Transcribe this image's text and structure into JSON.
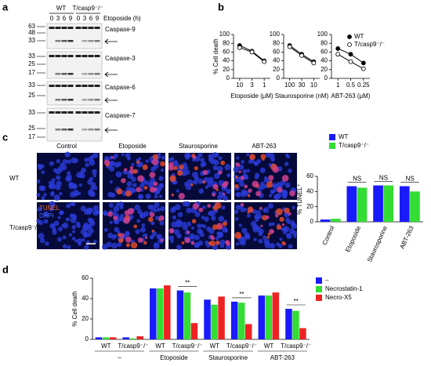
{
  "panel_labels": [
    "a",
    "b",
    "c",
    "d"
  ],
  "blots": {
    "genotypes": [
      "WT",
      "T/casp9⁻/⁻"
    ],
    "lanes": [
      "0",
      "3",
      "6",
      "9",
      "0",
      "3",
      "6",
      "9"
    ],
    "treatment": "Etoposide (h)",
    "panels": [
      {
        "name": "Caspase-9",
        "markers": [
          63,
          48,
          33
        ]
      },
      {
        "name": "Caspase-3",
        "markers": [
          33,
          25,
          17
        ]
      },
      {
        "name": "Caspase-6",
        "markers": [
          33,
          25
        ]
      },
      {
        "name": "Caspase-7",
        "markers": [
          33,
          25,
          17
        ]
      }
    ]
  },
  "images": {
    "columns": [
      "Control",
      "Etoposide",
      "Staurosporine",
      "ABT-263"
    ],
    "rows": [
      "WT",
      "T/casp9⁻/⁻"
    ],
    "stains": [
      "TUNEL",
      "DAPI"
    ]
  },
  "chart_data": [
    {
      "type": "line",
      "y_label": "% Cell death",
      "x_label": "Etoposide (μM)",
      "categories": [
        "10",
        "3",
        "1"
      ],
      "ylim": [
        0,
        100
      ],
      "yticks": [
        0,
        20,
        40,
        60,
        80,
        100
      ],
      "series": [
        {
          "color": "#000000",
          "marker_fill": "#000000",
          "values": [
            75,
            62,
            40
          ]
        },
        {
          "color": "#000000",
          "marker_fill": "#ffffff",
          "values": [
            70,
            60,
            38
          ]
        }
      ]
    },
    {
      "type": "line",
      "x_label": "Staurosporine (nM)",
      "categories": [
        "100",
        "30",
        "10"
      ],
      "ylim": [
        0,
        100
      ],
      "yticks": [
        0,
        20,
        40,
        60,
        80,
        100
      ],
      "series": [
        {
          "color": "#000000",
          "marker_fill": "#000000",
          "values": [
            75,
            55,
            38
          ]
        },
        {
          "color": "#000000",
          "marker_fill": "#ffffff",
          "values": [
            72,
            52,
            35
          ]
        }
      ]
    },
    {
      "type": "line",
      "x_label": "ABT-263 (μM)",
      "categories": [
        "1",
        "0.5",
        "0.25"
      ],
      "ylim": [
        0,
        100
      ],
      "yticks": [
        0,
        20,
        40,
        60,
        80,
        100
      ],
      "series": [
        {
          "name": "WT",
          "color": "#000000",
          "marker_fill": "#000000",
          "values": [
            68,
            55,
            35
          ]
        },
        {
          "name": "T/casp9⁻/⁻",
          "color": "#000000",
          "marker_fill": "#ffffff",
          "values": [
            55,
            38,
            22
          ]
        }
      ]
    },
    {
      "type": "bar",
      "y_label": "% TUNEL⁺",
      "categories": [
        "Control",
        "Etoposide",
        "Staurosporine",
        "ABT-263"
      ],
      "ylim": [
        0,
        60
      ],
      "yticks": [
        0,
        20,
        40,
        60
      ],
      "series": [
        {
          "name": "WT",
          "color": "#1a1aff",
          "values": [
            3,
            47,
            48,
            47
          ]
        },
        {
          "name": "T/casp9⁻/⁻",
          "color": "#33dd33",
          "values": [
            4,
            45,
            48,
            40
          ]
        }
      ],
      "annotations": [
        "NS",
        "NS",
        "NS"
      ]
    },
    {
      "type": "bar",
      "y_label": "% Cell death",
      "categories": [
        "WT",
        "T/casp9⁻/⁻",
        "WT",
        "T/casp9⁻/⁻",
        "WT",
        "T/casp9⁻/⁻",
        "WT",
        "T/casp9⁻/⁻"
      ],
      "group_labels": [
        "–",
        "Etoposide",
        "Staurosporine",
        "ABT-263"
      ],
      "ylim": [
        0,
        60
      ],
      "yticks": [
        0,
        20,
        40,
        60
      ],
      "series": [
        {
          "name": "–",
          "color": "#1a1aff",
          "values": [
            2,
            2,
            50,
            48,
            39,
            37,
            43,
            30
          ]
        },
        {
          "name": "Necrostatin-1",
          "color": "#33dd33",
          "values": [
            2,
            1,
            50,
            46,
            34,
            36,
            43,
            28
          ]
        },
        {
          "name": "Necro-X5",
          "color": "#ee2222",
          "values": [
            2,
            3,
            53,
            16,
            42,
            15,
            46,
            11
          ]
        }
      ],
      "annotations": [
        "**",
        "**",
        "**"
      ]
    }
  ]
}
